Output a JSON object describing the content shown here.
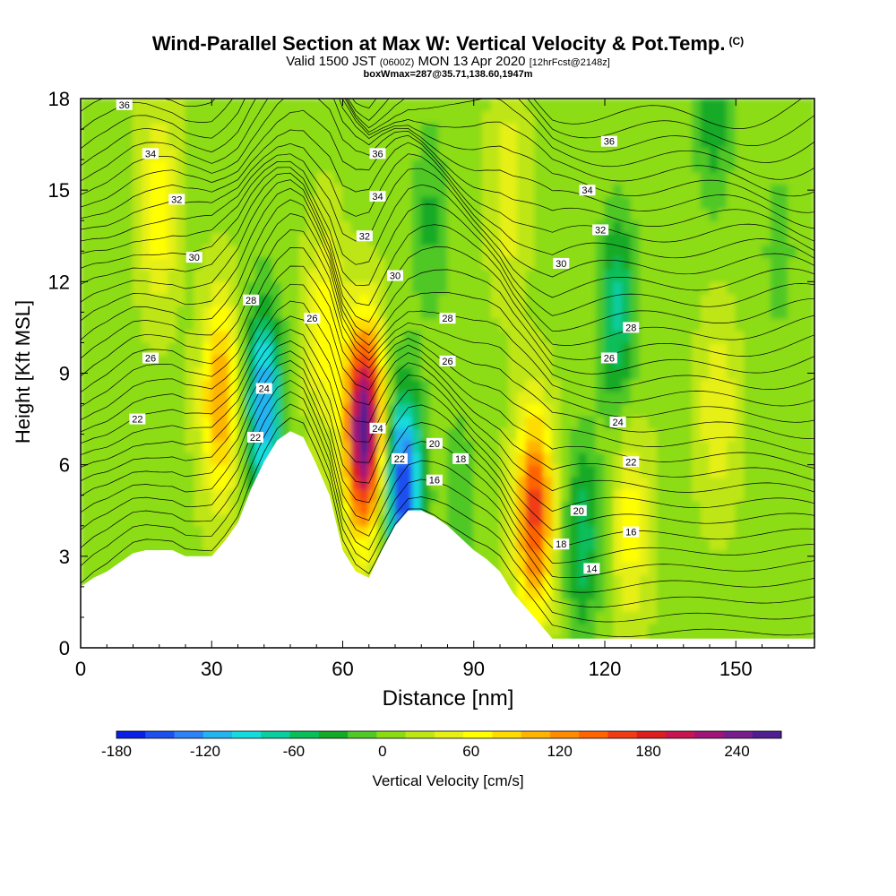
{
  "header": {
    "title": "Wind-Parallel Section at Max W: Vertical Velocity & Pot.Temp.",
    "copyright": "(C)",
    "valid_prefix": "Valid 1500 JST",
    "valid_utc": "(0600Z)",
    "valid_date": "MON 13 Apr 2020",
    "forecast": "[12hrFcst@2148z]",
    "box_info": "boxWmax=287@35.71,138.60,1947m"
  },
  "chart_data": {
    "type": "heatmap",
    "xlabel": "Distance [nm]",
    "ylabel": "Height [Kft MSL]",
    "xlim": [
      0,
      168
    ],
    "ylim": [
      0,
      18
    ],
    "xticks": [
      0,
      30,
      60,
      90,
      120,
      150
    ],
    "yticks": [
      0,
      3,
      6,
      9,
      12,
      15,
      18
    ],
    "colorbar": {
      "label": "Vertical Velocity [cm/s]",
      "ticks": [
        -180,
        -120,
        -60,
        0,
        60,
        120,
        180,
        240
      ],
      "bounds": [
        -180,
        270
      ],
      "step": 20,
      "colors": [
        "#0a1fe6",
        "#1e50f0",
        "#2d82f5",
        "#23b4f0",
        "#14dcdc",
        "#0acda0",
        "#0abe5a",
        "#14aa28",
        "#50c828",
        "#8cdc14",
        "#bee614",
        "#e6f014",
        "#ffff00",
        "#ffdc00",
        "#ffb400",
        "#ff8c00",
        "#ff6400",
        "#f03c14",
        "#dc1e1e",
        "#c81450",
        "#a01478",
        "#781e8c",
        "#501e91"
      ]
    },
    "terrain_height_kft": [
      [
        0,
        2.0
      ],
      [
        3,
        2.3
      ],
      [
        6,
        2.5
      ],
      [
        9,
        2.8
      ],
      [
        12,
        3.1
      ],
      [
        15,
        3.2
      ],
      [
        21,
        3.2
      ],
      [
        24,
        3.0
      ],
      [
        28,
        3.0
      ],
      [
        30,
        3.0
      ],
      [
        33,
        3.5
      ],
      [
        36,
        4.1
      ],
      [
        39,
        5.2
      ],
      [
        42,
        6.1
      ],
      [
        45,
        6.8
      ],
      [
        48,
        7.1
      ],
      [
        51,
        6.9
      ],
      [
        54,
        6.0
      ],
      [
        57,
        5.0
      ],
      [
        60,
        3.2
      ],
      [
        63,
        2.5
      ],
      [
        66,
        2.3
      ],
      [
        69,
        3.2
      ],
      [
        72,
        4.0
      ],
      [
        75,
        4.5
      ],
      [
        78,
        4.5
      ],
      [
        81,
        4.3
      ],
      [
        84,
        4.0
      ],
      [
        87,
        3.6
      ],
      [
        90,
        3.2
      ],
      [
        93,
        2.9
      ],
      [
        96,
        2.5
      ],
      [
        99,
        1.8
      ],
      [
        102,
        1.3
      ],
      [
        105,
        0.8
      ],
      [
        108,
        0.3
      ],
      [
        111,
        0.3
      ],
      [
        168,
        0.3
      ]
    ],
    "vertical_velocity_cells": [
      {
        "x": 18,
        "y": 14.5,
        "w": 60
      },
      {
        "x": 32,
        "y": 8.2,
        "w": 110
      },
      {
        "x": 42,
        "y": 8.0,
        "w": -140
      },
      {
        "x": 56,
        "y": 10.5,
        "w": 60
      },
      {
        "x": 65,
        "y": 7.2,
        "w": 260
      },
      {
        "x": 74,
        "y": 5.2,
        "w": -180
      },
      {
        "x": 80,
        "y": 14.0,
        "w": -40
      },
      {
        "x": 87,
        "y": 4.8,
        "w": -30
      },
      {
        "x": 98,
        "y": 15.0,
        "w": 40
      },
      {
        "x": 104,
        "y": 4.5,
        "w": 160
      },
      {
        "x": 115,
        "y": 3.6,
        "w": -70
      },
      {
        "x": 123,
        "y": 11.0,
        "w": -80
      },
      {
        "x": 126,
        "y": 4.0,
        "w": 55
      },
      {
        "x": 146,
        "y": 7.8,
        "w": 45
      },
      {
        "x": 145,
        "y": 17.5,
        "w": -50
      },
      {
        "x": 160,
        "y": 13.0,
        "w": -25
      }
    ],
    "theta_contour_labels": [
      {
        "text": "36",
        "x": 10,
        "y": 17.8
      },
      {
        "text": "34",
        "x": 16,
        "y": 16.2
      },
      {
        "text": "32",
        "x": 22,
        "y": 14.7
      },
      {
        "text": "30",
        "x": 26,
        "y": 12.8
      },
      {
        "text": "28",
        "x": 39,
        "y": 11.4
      },
      {
        "text": "26",
        "x": 16,
        "y": 9.5
      },
      {
        "text": "24",
        "x": 42,
        "y": 8.5
      },
      {
        "text": "22",
        "x": 13,
        "y": 7.5
      },
      {
        "text": "22",
        "x": 40,
        "y": 6.9
      },
      {
        "text": "26",
        "x": 53,
        "y": 10.8
      },
      {
        "text": "24",
        "x": 68,
        "y": 7.2
      },
      {
        "text": "22",
        "x": 73,
        "y": 6.2
      },
      {
        "text": "36",
        "x": 68,
        "y": 16.2
      },
      {
        "text": "34",
        "x": 68,
        "y": 14.8
      },
      {
        "text": "32",
        "x": 65,
        "y": 13.5
      },
      {
        "text": "30",
        "x": 72,
        "y": 12.2
      },
      {
        "text": "28",
        "x": 84,
        "y": 10.8
      },
      {
        "text": "26",
        "x": 84,
        "y": 9.4
      },
      {
        "text": "20",
        "x": 81,
        "y": 6.7
      },
      {
        "text": "18",
        "x": 87,
        "y": 6.2
      },
      {
        "text": "16",
        "x": 81,
        "y": 5.5
      },
      {
        "text": "36",
        "x": 121,
        "y": 16.6
      },
      {
        "text": "34",
        "x": 116,
        "y": 15.0
      },
      {
        "text": "32",
        "x": 119,
        "y": 13.7
      },
      {
        "text": "30",
        "x": 110,
        "y": 12.6
      },
      {
        "text": "28",
        "x": 126,
        "y": 10.5
      },
      {
        "text": "26",
        "x": 121,
        "y": 9.5
      },
      {
        "text": "24",
        "x": 123,
        "y": 7.4
      },
      {
        "text": "22",
        "x": 126,
        "y": 6.1
      },
      {
        "text": "20",
        "x": 114,
        "y": 4.5
      },
      {
        "text": "18",
        "x": 110,
        "y": 3.4
      },
      {
        "text": "16",
        "x": 126,
        "y": 3.8
      },
      {
        "text": "14",
        "x": 117,
        "y": 2.6
      }
    ]
  }
}
